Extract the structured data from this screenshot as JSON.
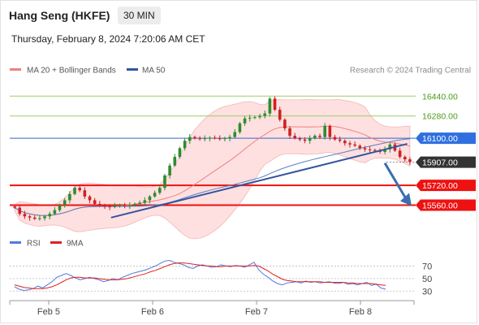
{
  "header": {
    "title": "Hang Seng (HKFE)",
    "timeframe": "30 MIN",
    "datetime": "Thursday, February 8, 2024 7:20:06 AM CET"
  },
  "legend": {
    "ma20": "MA 20 + Bollinger Bands",
    "ma50": "MA 50",
    "credit": "Research © 2024 Trading Central",
    "rsi": "RSI",
    "ma9": "9MA"
  },
  "colors": {
    "candle_up": "#2e8b2e",
    "candle_down": "#cc2222",
    "ma20": "#f08080",
    "bollinger_fill": "#fdd6d6",
    "ma50": "#5b7fbf",
    "trendline": "#3355a0",
    "resistance_green": "#9acd68",
    "pivot_blue": "#3366cc",
    "support_red": "#ee1111",
    "current_price": "#333333",
    "rsi": "#5577dd",
    "rsi_ma": "#dd2222"
  },
  "chart_data": [
    {
      "type": "candlestick",
      "x_labels": [
        "Feb 5",
        "Feb 6",
        "Feb 7",
        "Feb 8"
      ],
      "ylim": [
        15380,
        16560
      ],
      "levels": [
        {
          "value": 16440,
          "label": "16440.00",
          "kind": "resistance"
        },
        {
          "value": 16280,
          "label": "16280.00",
          "kind": "resistance"
        },
        {
          "value": 16100,
          "label": "16100.00",
          "kind": "pivot"
        },
        {
          "value": 15907,
          "label": "15907.00",
          "kind": "current"
        },
        {
          "value": 15720,
          "label": "15720.00",
          "kind": "support"
        },
        {
          "value": 15560,
          "label": "15560.00",
          "kind": "support"
        }
      ],
      "trendline": {
        "from": {
          "session": 0.6,
          "price": 15460
        },
        "to": {
          "session": 3.45,
          "price": 16055
        }
      },
      "forecast_arrow": {
        "from_price": 15900,
        "to_price": 15580
      },
      "closes": [
        15540,
        15490,
        15470,
        15460,
        15450,
        15455,
        15470,
        15490,
        15520,
        15560,
        15600,
        15650,
        15700,
        15680,
        15630,
        15600,
        15570,
        15560,
        15550,
        15545,
        15555,
        15560,
        15555,
        15560,
        15570,
        15580,
        15600,
        15630,
        15660,
        15700,
        15800,
        15880,
        15950,
        16020,
        16080,
        16110,
        16100,
        16095,
        16100,
        16105,
        16100,
        16095,
        16100,
        16110,
        16150,
        16220,
        16260,
        16265,
        16270,
        16280,
        16300,
        16420,
        16330,
        16250,
        16180,
        16120,
        16100,
        16090,
        16080,
        16100,
        16120,
        16110,
        16200,
        16110,
        16090,
        16080,
        16060,
        16050,
        16040,
        16020,
        16010,
        16005,
        16000,
        15990,
        16010,
        16050,
        16000,
        15950,
        15930,
        15910
      ]
    },
    {
      "type": "line",
      "name": "RSI",
      "ylim": [
        20,
        90
      ],
      "yticks": [
        30,
        50,
        70
      ],
      "series": [
        {
          "name": "RSI",
          "values": [
            37,
            33,
            31,
            32,
            34,
            38,
            35,
            40,
            45,
            52,
            55,
            58,
            55,
            51,
            48,
            50,
            52,
            50,
            48,
            45,
            47,
            50,
            48,
            52,
            55,
            58,
            60,
            62,
            64,
            67,
            70,
            74,
            78,
            79,
            76,
            74,
            72,
            68,
            66,
            70,
            72,
            70,
            68,
            69,
            72,
            70,
            69,
            71,
            70,
            68,
            72,
            76,
            64,
            57,
            52,
            46,
            42,
            40,
            43,
            44,
            45,
            43,
            46,
            44,
            45,
            43,
            44,
            45,
            43,
            42,
            44,
            41,
            42,
            40,
            42,
            44,
            39,
            41,
            35,
            33
          ]
        },
        {
          "name": "9MA",
          "values": [
            40,
            38,
            36,
            35,
            34,
            34,
            34,
            35,
            37,
            40,
            44,
            48,
            51,
            52,
            52,
            51,
            51,
            51,
            50,
            49,
            48,
            48,
            48,
            49,
            50,
            52,
            54,
            56,
            58,
            61,
            63,
            66,
            69,
            72,
            74,
            75,
            75,
            74,
            73,
            72,
            71,
            70,
            70,
            69,
            69,
            70,
            70,
            70,
            70,
            70,
            70,
            71,
            70,
            66,
            62,
            57,
            53,
            49,
            47,
            46,
            45,
            45,
            45,
            45,
            45,
            45,
            44,
            44,
            44,
            44,
            44,
            43,
            43,
            42,
            42,
            42,
            42,
            41,
            40,
            39
          ]
        }
      ]
    }
  ]
}
